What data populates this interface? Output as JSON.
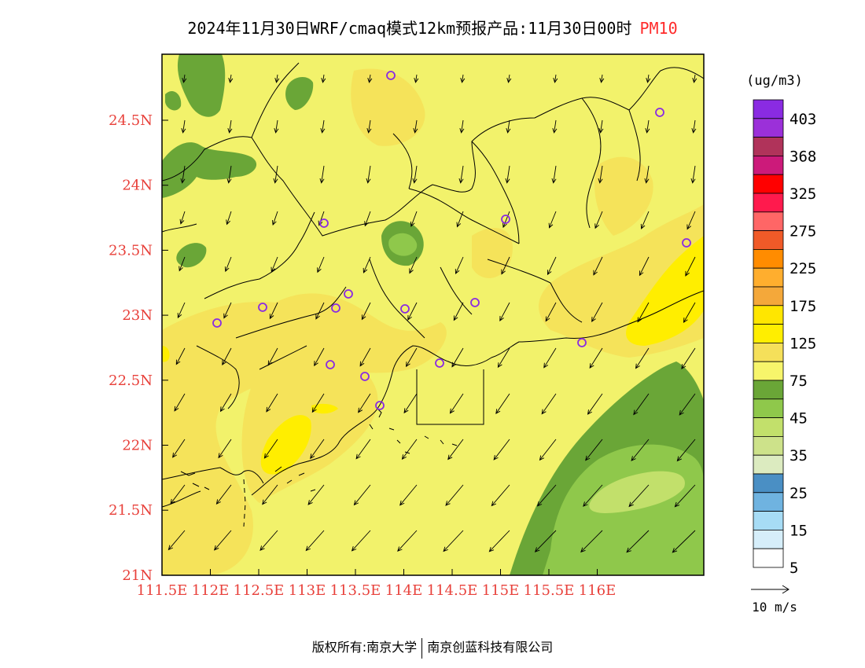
{
  "title": {
    "main": "2024年11月30日WRF/cmaq模式12km预报产品:11月30日00时",
    "variable": "PM10"
  },
  "map": {
    "frame_color": "#000000",
    "lon_ticks": [
      "111.5E",
      "112E",
      "112.5E",
      "113E",
      "113.5E",
      "114E",
      "114.5E",
      "115E",
      "115.5E",
      "116E"
    ],
    "lat_ticks": [
      "24.5N",
      "24N",
      "23.5N",
      "23N",
      "22.5N",
      "22N",
      "21.5N",
      "21N"
    ],
    "tick_label_color": "#e8403a",
    "stations": [
      "station",
      "station",
      "station",
      "station",
      "station",
      "station",
      "station",
      "station",
      "station",
      "station",
      "station",
      "station",
      "station",
      "station",
      "station",
      "station"
    ]
  },
  "legend": {
    "unit": "(ug/m3)",
    "labels": [
      "403",
      "368",
      "325",
      "275",
      "225",
      "175",
      "125",
      "75",
      "45",
      "35",
      "25",
      "15",
      "5"
    ],
    "colors": [
      "#8a2be2",
      "#9b30d9",
      "#b0335a",
      "#cc1a7a",
      "#ff0000",
      "#ff1a4d",
      "#ff6666",
      "#f05a28",
      "#ff8c00",
      "#ffae2e",
      "#f4a83a",
      "#ffe600",
      "#ffee00",
      "#f5e05a",
      "#f7f56b",
      "#6aa637",
      "#8fc84b",
      "#c2e06b",
      "#cde28a",
      "#dcebc0",
      "#4a8fc4",
      "#6fb3e0",
      "#a7dcf5",
      "#d6eefa",
      "#ffffff"
    ]
  },
  "wind_scale": {
    "label": "10 m/s"
  },
  "footer": {
    "left": "版权所有:南京大学",
    "right": "南京创蓝科技有限公司"
  },
  "palette": {
    "base_yellow": "#f2f26b",
    "light_orange": "#f5e35a",
    "yellow": "#ffee00",
    "dark_green": "#6aa637",
    "mid_green": "#8fc84b",
    "light_green": "#c2e06b",
    "station_color": "#8a2be2"
  }
}
